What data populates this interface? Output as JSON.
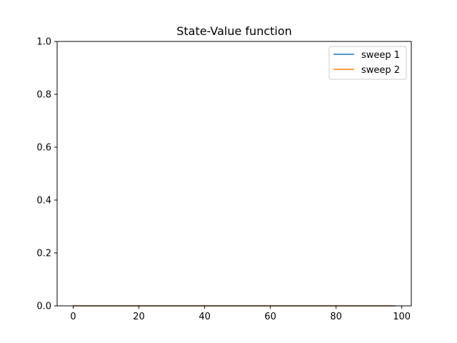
{
  "chart_data": {
    "type": "line",
    "title": "State-Value function",
    "xlabel": "",
    "ylabel": "",
    "xlim": [
      -4.9,
      102.9
    ],
    "ylim": [
      0.0,
      1.0
    ],
    "x_ticks": [
      0,
      20,
      40,
      60,
      80,
      100
    ],
    "x_tick_labels": [
      "0",
      "20",
      "40",
      "60",
      "80",
      "100"
    ],
    "y_ticks": [
      0.0,
      0.2,
      0.4,
      0.6,
      0.8,
      1.0
    ],
    "y_tick_labels": [
      "0.0",
      "0.2",
      "0.4",
      "0.6",
      "0.8",
      "1.0"
    ],
    "grid": false,
    "legend_position": "top-right",
    "x_range": [
      0,
      98
    ],
    "series": [
      {
        "name": "sweep 1",
        "color": "#1f77b4",
        "x_start": 0,
        "x_end": 98,
        "constant_value": 0.0
      },
      {
        "name": "sweep 2",
        "color": "#ff7f0e",
        "x_start": 0,
        "x_end": 98,
        "constant_value": 0.0
      }
    ]
  }
}
